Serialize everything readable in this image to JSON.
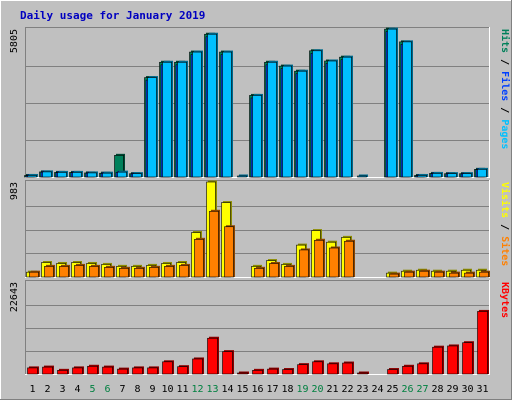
{
  "chart_data": [
    {
      "type": "bar",
      "title": "Daily usage for January 2019",
      "ymax_label": "5805",
      "ylim": [
        0,
        5805
      ],
      "categories": [
        "1",
        "2",
        "3",
        "4",
        "5",
        "6",
        "7",
        "8",
        "9",
        "10",
        "11",
        "12",
        "13",
        "14",
        "15",
        "16",
        "17",
        "18",
        "19",
        "20",
        "21",
        "22",
        "23",
        "24",
        "25",
        "26",
        "27",
        "28",
        "29",
        "30",
        "31"
      ],
      "series": [
        {
          "name": "Hits",
          "color": "#00805a",
          "values": [
            60,
            200,
            180,
            180,
            160,
            150,
            850,
            130,
            3900,
            4500,
            4500,
            4900,
            5600,
            4900,
            0,
            3200,
            4500,
            4350,
            4150,
            4950,
            4550,
            4700,
            0,
            0,
            5800,
            5300,
            60,
            140,
            130,
            130,
            300
          ]
        },
        {
          "name": "Files",
          "color": "#0040ff",
          "values": [
            50,
            190,
            170,
            170,
            150,
            140,
            180,
            120,
            3800,
            4400,
            4400,
            4800,
            5500,
            4800,
            0,
            3100,
            4400,
            4250,
            4050,
            4850,
            4450,
            4600,
            0,
            0,
            5700,
            5200,
            50,
            130,
            120,
            120,
            290
          ]
        },
        {
          "name": "Pages",
          "color": "#00c0ff",
          "values": [
            60,
            200,
            180,
            180,
            160,
            150,
            190,
            130,
            3900,
            4500,
            4500,
            4900,
            5600,
            4900,
            40,
            3200,
            4500,
            4350,
            4150,
            4950,
            4550,
            4700,
            40,
            0,
            5800,
            5300,
            60,
            140,
            130,
            130,
            300
          ]
        }
      ],
      "legend_labels": [
        "Pages",
        "Files",
        "Hits"
      ],
      "legend_colors": [
        "#00c0ff",
        "#0040ff",
        "#00805a"
      ]
    },
    {
      "type": "bar",
      "ymax_label": "983",
      "ylim": [
        0,
        983
      ],
      "categories": [
        "1",
        "2",
        "3",
        "4",
        "5",
        "6",
        "7",
        "8",
        "9",
        "10",
        "11",
        "12",
        "13",
        "14",
        "15",
        "16",
        "17",
        "18",
        "19",
        "20",
        "21",
        "22",
        "23",
        "24",
        "25",
        "26",
        "27",
        "28",
        "29",
        "30",
        "31"
      ],
      "series": [
        {
          "name": "Visits",
          "color": "#ffff00",
          "values": [
            50,
            150,
            140,
            150,
            140,
            130,
            110,
            110,
            120,
            140,
            150,
            460,
            983,
            770,
            0,
            110,
            170,
            130,
            330,
            480,
            360,
            410,
            0,
            0,
            40,
            60,
            70,
            60,
            60,
            70,
            70
          ]
        },
        {
          "name": "Sites",
          "color": "#ff8000",
          "values": [
            50,
            110,
            110,
            120,
            110,
            100,
            90,
            90,
            100,
            110,
            120,
            390,
            680,
            520,
            0,
            90,
            140,
            110,
            280,
            380,
            300,
            370,
            0,
            0,
            30,
            50,
            60,
            50,
            40,
            40,
            50
          ]
        }
      ],
      "legend_labels": [
        "Sites",
        "Visits"
      ],
      "legend_colors": [
        "#ff8000",
        "#ffff00"
      ]
    },
    {
      "type": "bar",
      "ymax_label": "22643",
      "ylim": [
        0,
        22643
      ],
      "categories": [
        "1",
        "2",
        "3",
        "4",
        "5",
        "6",
        "7",
        "8",
        "9",
        "10",
        "11",
        "12",
        "13",
        "14",
        "15",
        "16",
        "17",
        "18",
        "19",
        "20",
        "21",
        "22",
        "23",
        "24",
        "25",
        "26",
        "27",
        "28",
        "29",
        "30",
        "31"
      ],
      "series": [
        {
          "name": "KBytes",
          "color": "#ff0000",
          "values": [
            1500,
            1700,
            900,
            1500,
            1900,
            1700,
            1200,
            1500,
            1500,
            3000,
            1800,
            3700,
            8800,
            5500,
            200,
            900,
            1200,
            1100,
            2300,
            3000,
            2500,
            2700,
            200,
            0,
            1100,
            1900,
            2500,
            6600,
            6900,
            7700,
            15400
          ]
        }
      ],
      "legend_labels": [
        "KBytes"
      ],
      "legend_colors": [
        "#ff0000"
      ]
    }
  ],
  "weekend_days": [
    "5",
    "6",
    "12",
    "13",
    "19",
    "20",
    "26",
    "27"
  ],
  "colors": {
    "title": "#0000c0",
    "weekday_tick": "#000000",
    "weekend_tick": "#008040",
    "panel_bg": "#c0c0c0",
    "grid": "#808080"
  }
}
